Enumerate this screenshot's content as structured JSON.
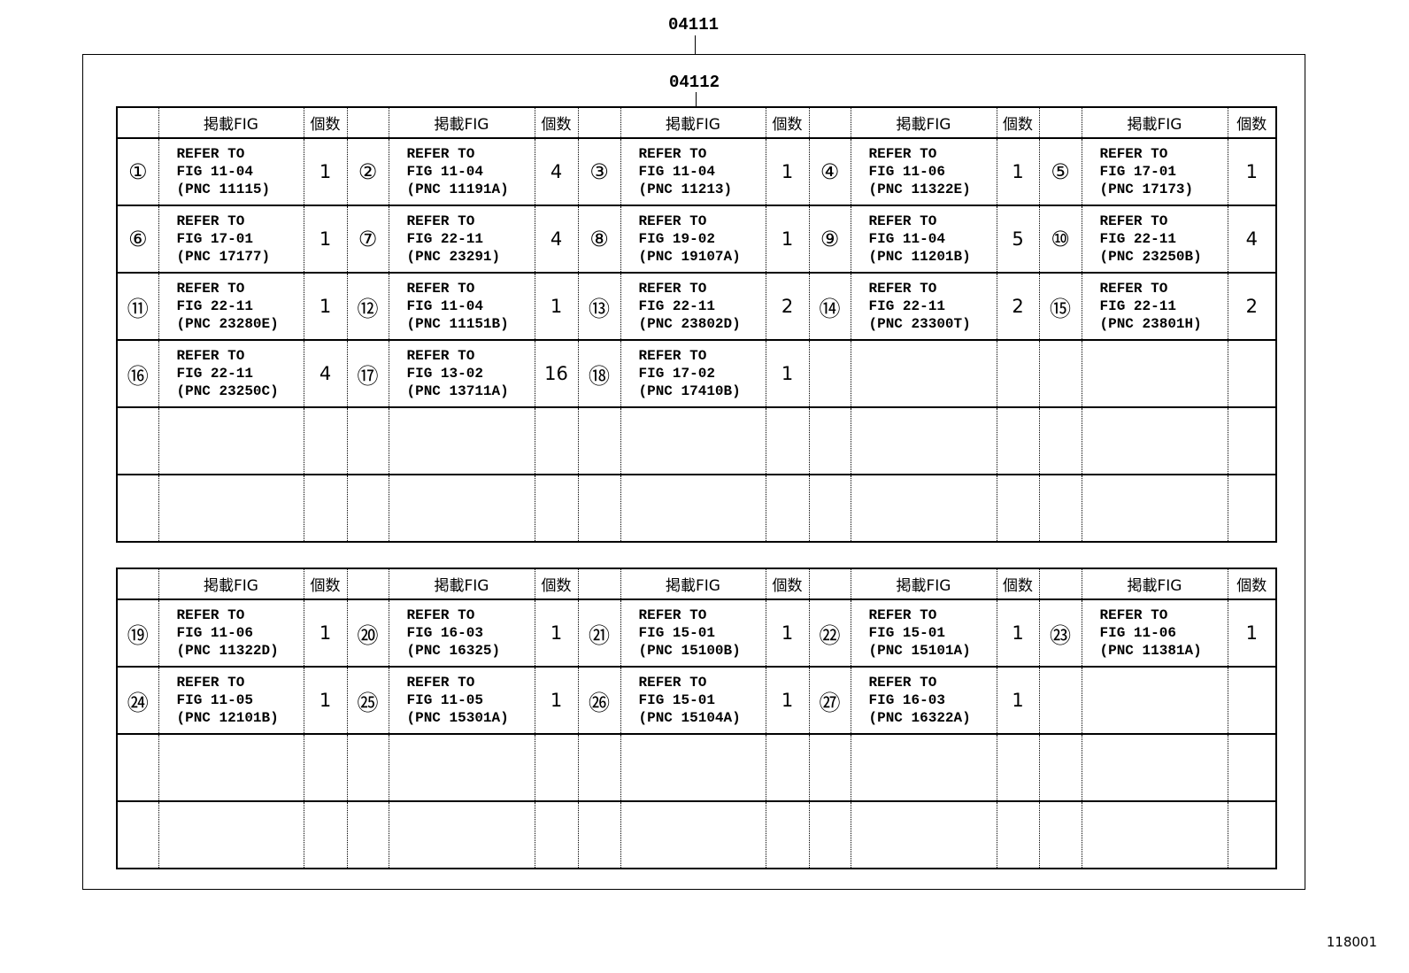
{
  "labels": {
    "top_code": "04111",
    "inner_code": "04112",
    "footer_code": "118001"
  },
  "header": {
    "fig": "掲載FIG",
    "qty": "個数"
  },
  "refer_prefix": "REFER TO",
  "table_top": {
    "rows": 6,
    "items": [
      {
        "num": "①",
        "fig": "FIG 11-04",
        "pnc": "(PNC 11115)",
        "qty": "1"
      },
      {
        "num": "②",
        "fig": "FIG 11-04",
        "pnc": "(PNC 11191A)",
        "qty": "4"
      },
      {
        "num": "③",
        "fig": "FIG 11-04",
        "pnc": "(PNC 11213)",
        "qty": "1"
      },
      {
        "num": "④",
        "fig": "FIG 11-06",
        "pnc": "(PNC 11322E)",
        "qty": "1"
      },
      {
        "num": "⑤",
        "fig": "FIG 17-01",
        "pnc": "(PNC 17173)",
        "qty": "1"
      },
      {
        "num": "⑥",
        "fig": "FIG 17-01",
        "pnc": "(PNC 17177)",
        "qty": "1"
      },
      {
        "num": "⑦",
        "fig": "FIG 22-11",
        "pnc": "(PNC 23291)",
        "qty": "4"
      },
      {
        "num": "⑧",
        "fig": "FIG 19-02",
        "pnc": "(PNC 19107A)",
        "qty": "1"
      },
      {
        "num": "⑨",
        "fig": "FIG 11-04",
        "pnc": "(PNC 11201B)",
        "qty": "5"
      },
      {
        "num": "⑩",
        "fig": "FIG 22-11",
        "pnc": "(PNC 23250B)",
        "qty": "4"
      },
      {
        "num": "⑪",
        "fig": "FIG 22-11",
        "pnc": "(PNC 23280E)",
        "qty": "1"
      },
      {
        "num": "⑫",
        "fig": "FIG 11-04",
        "pnc": "(PNC 11151B)",
        "qty": "1"
      },
      {
        "num": "⑬",
        "fig": "FIG 22-11",
        "pnc": "(PNC 23802D)",
        "qty": "2"
      },
      {
        "num": "⑭",
        "fig": "FIG 22-11",
        "pnc": "(PNC 23300T)",
        "qty": "2"
      },
      {
        "num": "⑮",
        "fig": "FIG 22-11",
        "pnc": "(PNC 23801H)",
        "qty": "2"
      },
      {
        "num": "⑯",
        "fig": "FIG 22-11",
        "pnc": "(PNC 23250C)",
        "qty": "4"
      },
      {
        "num": "⑰",
        "fig": "FIG 13-02",
        "pnc": "(PNC 13711A)",
        "qty": "16"
      },
      {
        "num": "⑱",
        "fig": "FIG 17-02",
        "pnc": "(PNC 17410B)",
        "qty": "1"
      }
    ]
  },
  "table_bottom": {
    "rows": 4,
    "items": [
      {
        "num": "⑲",
        "fig": "FIG 11-06",
        "pnc": "(PNC 11322D)",
        "qty": "1"
      },
      {
        "num": "⑳",
        "fig": "FIG 16-03",
        "pnc": "(PNC 16325)",
        "qty": "1"
      },
      {
        "num": "㉑",
        "fig": "FIG 15-01",
        "pnc": "(PNC 15100B)",
        "qty": "1"
      },
      {
        "num": "㉒",
        "fig": "FIG 15-01",
        "pnc": "(PNC 15101A)",
        "qty": "1"
      },
      {
        "num": "㉓",
        "fig": "FIG 11-06",
        "pnc": "(PNC 11381A)",
        "qty": "1"
      },
      {
        "num": "㉔",
        "fig": "FIG 11-05",
        "pnc": "(PNC 12101B)",
        "qty": "1"
      },
      {
        "num": "㉕",
        "fig": "FIG 11-05",
        "pnc": "(PNC 15301A)",
        "qty": "1"
      },
      {
        "num": "㉖",
        "fig": "FIG 15-01",
        "pnc": "(PNC 15104A)",
        "qty": "1"
      },
      {
        "num": "㉗",
        "fig": "FIG 16-03",
        "pnc": "(PNC 16322A)",
        "qty": "1"
      }
    ]
  }
}
